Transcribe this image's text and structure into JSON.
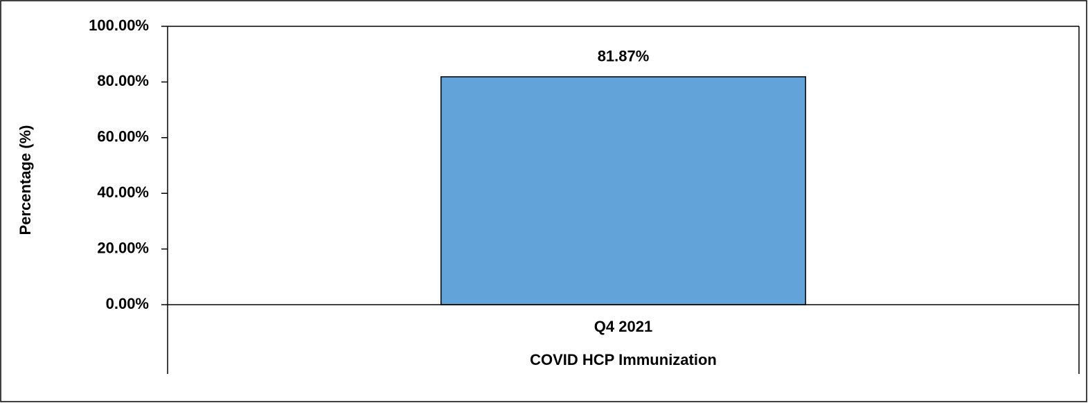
{
  "chart_data": {
    "type": "bar",
    "x_label": "COVID HCP Immunization",
    "y_label": "Percentage (%)",
    "categories": [
      "Q4 2021"
    ],
    "values": [
      81.87
    ],
    "value_labels": [
      "81.87%"
    ],
    "color": "#62a3d9",
    "ylim": [
      0,
      100
    ],
    "yticks": [
      {
        "value": 0,
        "label": "0.00%"
      },
      {
        "value": 20,
        "label": "20.00%"
      },
      {
        "value": 40,
        "label": "40.00%"
      },
      {
        "value": 60,
        "label": "60.00%"
      },
      {
        "value": 80,
        "label": "80.00%"
      },
      {
        "value": 100,
        "label": "100.00%"
      }
    ],
    "grid": false
  }
}
